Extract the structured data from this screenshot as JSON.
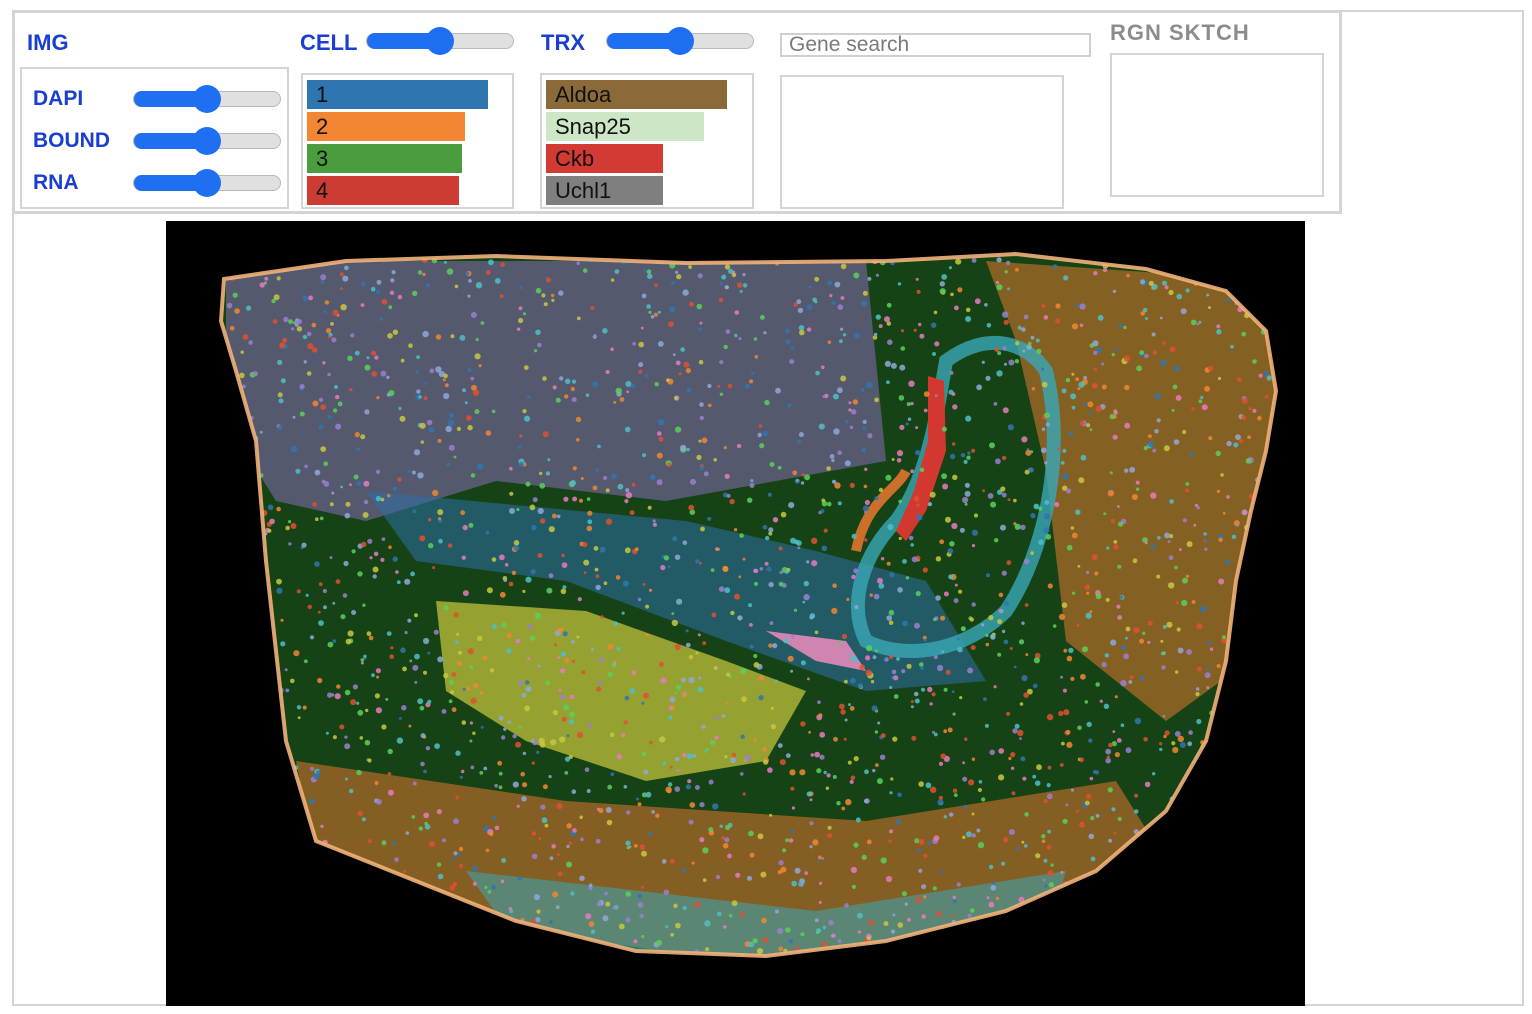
{
  "img": {
    "title": "IMG",
    "channels": [
      {
        "label": "DAPI",
        "value": 0.5
      },
      {
        "label": "BOUND",
        "value": 0.5
      },
      {
        "label": "RNA",
        "value": 0.5
      }
    ]
  },
  "cell": {
    "title": "CELL",
    "slider_value": 0.5,
    "clusters": [
      {
        "label": "1",
        "color": "#2f75b0"
      },
      {
        "label": "2",
        "color": "#f28633"
      },
      {
        "label": "3",
        "color": "#4a9c3f"
      },
      {
        "label": "4",
        "color": "#cc3c32"
      }
    ]
  },
  "trx": {
    "title": "TRX",
    "slider_value": 0.5,
    "genes": [
      {
        "label": "Aldoa",
        "color": "#8b6a3a"
      },
      {
        "label": "Snap25",
        "color": "#cce6c6"
      },
      {
        "label": "Ckb",
        "color": "#d23a33"
      },
      {
        "label": "Uchl1",
        "color": "#7f7f7f"
      }
    ]
  },
  "search": {
    "placeholder": "Gene search",
    "value": ""
  },
  "region_sketch": {
    "title": "RGN SKTCH"
  }
}
